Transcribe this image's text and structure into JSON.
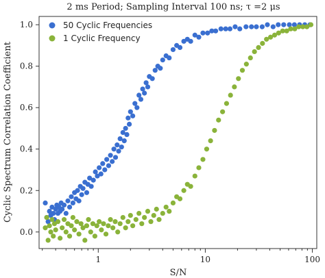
{
  "chart_data": {
    "type": "scatter",
    "title": "2 ms Period; Sampling Interval 100 ns; τ =2 μs",
    "xlabel": "S/N",
    "ylabel": "Cyclic Spectrum Correlation Coefficient",
    "xscale": "log",
    "xlim": [
      0.28,
      110
    ],
    "ylim": [
      -0.08,
      1.04
    ],
    "xticks": [
      1,
      10,
      100
    ],
    "xtick_labels": [
      "1",
      "10",
      "100"
    ],
    "yticks": [
      0.0,
      0.2,
      0.4,
      0.6,
      0.8,
      1.0
    ],
    "ytick_labels": [
      "0.0",
      "0.2",
      "0.4",
      "0.6",
      "0.8",
      "1.0"
    ],
    "grid": false,
    "legend": {
      "placement": "top-left"
    },
    "series": [
      {
        "name": "50 Cyclic Frequencies",
        "color": "#3a6fd0",
        "points": [
          [
            0.32,
            0.14
          ],
          [
            0.33,
            0.07
          ],
          [
            0.34,
            0.05
          ],
          [
            0.35,
            0.1
          ],
          [
            0.36,
            0.08
          ],
          [
            0.37,
            0.12
          ],
          [
            0.38,
            0.09
          ],
          [
            0.39,
            0.06
          ],
          [
            0.4,
            0.11
          ],
          [
            0.41,
            0.13
          ],
          [
            0.42,
            0.09
          ],
          [
            0.43,
            0.12
          ],
          [
            0.44,
            0.1
          ],
          [
            0.45,
            0.14
          ],
          [
            0.46,
            0.11
          ],
          [
            0.48,
            0.13
          ],
          [
            0.5,
            0.09
          ],
          [
            0.52,
            0.15
          ],
          [
            0.54,
            0.12
          ],
          [
            0.56,
            0.17
          ],
          [
            0.58,
            0.14
          ],
          [
            0.6,
            0.19
          ],
          [
            0.62,
            0.16
          ],
          [
            0.64,
            0.2
          ],
          [
            0.66,
            0.15
          ],
          [
            0.68,
            0.22
          ],
          [
            0.7,
            0.18
          ],
          [
            0.72,
            0.21
          ],
          [
            0.75,
            0.24
          ],
          [
            0.78,
            0.19
          ],
          [
            0.8,
            0.23
          ],
          [
            0.83,
            0.26
          ],
          [
            0.86,
            0.22
          ],
          [
            0.9,
            0.25
          ],
          [
            0.94,
            0.29
          ],
          [
            0.98,
            0.27
          ],
          [
            1.02,
            0.31
          ],
          [
            1.06,
            0.28
          ],
          [
            1.1,
            0.33
          ],
          [
            1.15,
            0.3
          ],
          [
            1.2,
            0.35
          ],
          [
            1.25,
            0.32
          ],
          [
            1.3,
            0.37
          ],
          [
            1.35,
            0.34
          ],
          [
            1.4,
            0.4
          ],
          [
            1.45,
            0.36
          ],
          [
            1.5,
            0.42
          ],
          [
            1.55,
            0.39
          ],
          [
            1.6,
            0.45
          ],
          [
            1.65,
            0.41
          ],
          [
            1.7,
            0.48
          ],
          [
            1.75,
            0.44
          ],
          [
            1.8,
            0.5
          ],
          [
            1.85,
            0.47
          ],
          [
            1.9,
            0.55
          ],
          [
            1.95,
            0.52
          ],
          [
            2.0,
            0.58
          ],
          [
            2.1,
            0.56
          ],
          [
            2.2,
            0.62
          ],
          [
            2.3,
            0.6
          ],
          [
            2.4,
            0.66
          ],
          [
            2.5,
            0.64
          ],
          [
            2.6,
            0.69
          ],
          [
            2.7,
            0.67
          ],
          [
            2.8,
            0.72
          ],
          [
            2.9,
            0.7
          ],
          [
            3.0,
            0.75
          ],
          [
            3.2,
            0.74
          ],
          [
            3.4,
            0.78
          ],
          [
            3.6,
            0.8
          ],
          [
            3.8,
            0.79
          ],
          [
            4.0,
            0.83
          ],
          [
            4.3,
            0.85
          ],
          [
            4.6,
            0.84
          ],
          [
            5.0,
            0.88
          ],
          [
            5.4,
            0.9
          ],
          [
            5.8,
            0.89
          ],
          [
            6.3,
            0.92
          ],
          [
            6.8,
            0.93
          ],
          [
            7.3,
            0.92
          ],
          [
            8.0,
            0.95
          ],
          [
            8.7,
            0.94
          ],
          [
            9.5,
            0.96
          ],
          [
            10.5,
            0.96
          ],
          [
            11.5,
            0.97
          ],
          [
            12.5,
            0.97
          ],
          [
            14.0,
            0.98
          ],
          [
            15.5,
            0.98
          ],
          [
            17.0,
            0.98
          ],
          [
            19.0,
            0.99
          ],
          [
            21.0,
            0.98
          ],
          [
            24.0,
            0.99
          ],
          [
            27.0,
            0.99
          ],
          [
            30.0,
            0.99
          ],
          [
            34.0,
            0.99
          ],
          [
            38.0,
            1.0
          ],
          [
            43.0,
            0.99
          ],
          [
            48.0,
            1.0
          ],
          [
            54.0,
            1.0
          ],
          [
            61.0,
            1.0
          ],
          [
            68.0,
            1.0
          ],
          [
            76.0,
            1.0
          ],
          [
            85.0,
            1.0
          ],
          [
            95.0,
            1.0
          ]
        ]
      },
      {
        "name": "1 Cyclic Frequency",
        "color": "#8ab33a",
        "points": [
          [
            0.32,
            0.02
          ],
          [
            0.33,
            0.07
          ],
          [
            0.34,
            -0.04
          ],
          [
            0.35,
            0.03
          ],
          [
            0.36,
            0.0
          ],
          [
            0.37,
            0.06
          ],
          [
            0.38,
            -0.02
          ],
          [
            0.39,
            0.04
          ],
          [
            0.4,
            0.01
          ],
          [
            0.42,
            0.05
          ],
          [
            0.44,
            -0.03
          ],
          [
            0.46,
            0.02
          ],
          [
            0.48,
            0.06
          ],
          [
            0.5,
            0.0
          ],
          [
            0.52,
            0.04
          ],
          [
            0.54,
            -0.02
          ],
          [
            0.56,
            0.03
          ],
          [
            0.58,
            0.07
          ],
          [
            0.6,
            0.01
          ],
          [
            0.63,
            0.05
          ],
          [
            0.66,
            -0.01
          ],
          [
            0.69,
            0.04
          ],
          [
            0.72,
            0.02
          ],
          [
            0.75,
            -0.04
          ],
          [
            0.78,
            0.03
          ],
          [
            0.81,
            0.06
          ],
          [
            0.85,
            0.0
          ],
          [
            0.89,
            0.04
          ],
          [
            0.93,
            -0.02
          ],
          [
            0.97,
            0.03
          ],
          [
            1.02,
            0.05
          ],
          [
            1.07,
            0.01
          ],
          [
            1.12,
            0.04
          ],
          [
            1.18,
            -0.01
          ],
          [
            1.24,
            0.03
          ],
          [
            1.3,
            0.06
          ],
          [
            1.37,
            0.02
          ],
          [
            1.44,
            0.05
          ],
          [
            1.52,
            0.0
          ],
          [
            1.6,
            0.04
          ],
          [
            1.7,
            0.07
          ],
          [
            1.8,
            0.02
          ],
          [
            1.9,
            0.05
          ],
          [
            2.0,
            0.08
          ],
          [
            2.1,
            0.03
          ],
          [
            2.25,
            0.06
          ],
          [
            2.4,
            0.09
          ],
          [
            2.55,
            0.04
          ],
          [
            2.7,
            0.07
          ],
          [
            2.9,
            0.1
          ],
          [
            3.1,
            0.05
          ],
          [
            3.3,
            0.08
          ],
          [
            3.5,
            0.11
          ],
          [
            3.7,
            0.06
          ],
          [
            4.0,
            0.09
          ],
          [
            4.3,
            0.12
          ],
          [
            4.6,
            0.1
          ],
          [
            5.0,
            0.14
          ],
          [
            5.4,
            0.17
          ],
          [
            5.8,
            0.16
          ],
          [
            6.3,
            0.2
          ],
          [
            6.8,
            0.23
          ],
          [
            7.3,
            0.22
          ],
          [
            8.0,
            0.27
          ],
          [
            8.7,
            0.31
          ],
          [
            9.5,
            0.35
          ],
          [
            10.3,
            0.4
          ],
          [
            11.2,
            0.44
          ],
          [
            12.2,
            0.49
          ],
          [
            13.3,
            0.54
          ],
          [
            14.5,
            0.58
          ],
          [
            15.8,
            0.62
          ],
          [
            17.2,
            0.66
          ],
          [
            18.7,
            0.7
          ],
          [
            20.4,
            0.74
          ],
          [
            22.2,
            0.78
          ],
          [
            24.2,
            0.81
          ],
          [
            26.4,
            0.84
          ],
          [
            28.8,
            0.87
          ],
          [
            31.4,
            0.89
          ],
          [
            34.2,
            0.91
          ],
          [
            37.3,
            0.93
          ],
          [
            40.7,
            0.94
          ],
          [
            44.4,
            0.95
          ],
          [
            48.4,
            0.96
          ],
          [
            52.8,
            0.97
          ],
          [
            57.6,
            0.97
          ],
          [
            62.8,
            0.98
          ],
          [
            68.5,
            0.98
          ],
          [
            74.7,
            0.99
          ],
          [
            81.5,
            0.99
          ],
          [
            88.9,
            0.99
          ],
          [
            97.0,
            1.0
          ]
        ]
      }
    ]
  }
}
